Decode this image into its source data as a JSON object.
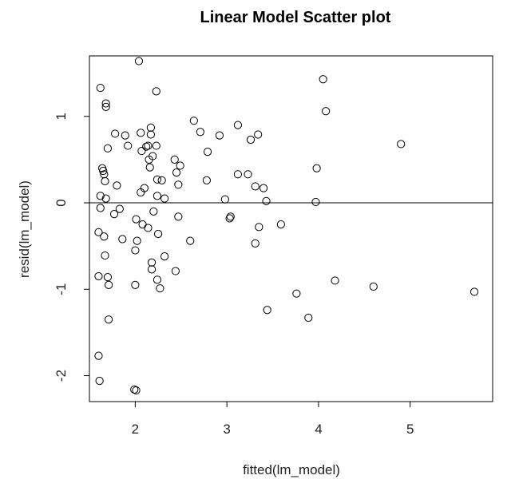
{
  "chart_data": {
    "type": "scatter",
    "title": "Linear Model Scatter plot",
    "xlabel": "fitted(lm_model)",
    "ylabel": "resid(lm_model)",
    "xlim": [
      1.5,
      5.9
    ],
    "ylim": [
      -2.3,
      1.7
    ],
    "xticks": [
      2,
      3,
      4,
      5
    ],
    "yticks": [
      -2,
      -1,
      0,
      1
    ],
    "hline": 0,
    "frame": true,
    "point_style": "open-circle",
    "colors": {
      "ink": "#000000",
      "background": "#ffffff"
    },
    "points": [
      [
        1.62,
        1.33
      ],
      [
        1.68,
        1.15
      ],
      [
        1.68,
        1.11
      ],
      [
        1.7,
        0.63
      ],
      [
        2.04,
        1.64
      ],
      [
        2.23,
        1.29
      ],
      [
        4.05,
        1.43
      ],
      [
        4.08,
        1.06
      ],
      [
        1.64,
        0.4
      ],
      [
        1.65,
        0.37
      ],
      [
        1.66,
        0.33
      ],
      [
        1.67,
        0.25
      ],
      [
        1.62,
        0.08
      ],
      [
        1.68,
        0.05
      ],
      [
        1.62,
        -0.06
      ],
      [
        1.6,
        -0.34
      ],
      [
        1.66,
        -0.39
      ],
      [
        1.67,
        -0.61
      ],
      [
        1.6,
        -0.85
      ],
      [
        1.7,
        -0.86
      ],
      [
        1.71,
        -0.95
      ],
      [
        1.71,
        -1.35
      ],
      [
        1.6,
        -1.77
      ],
      [
        1.61,
        -2.06
      ],
      [
        1.78,
        0.8
      ],
      [
        1.8,
        0.2
      ],
      [
        1.83,
        -0.07
      ],
      [
        1.77,
        -0.13
      ],
      [
        1.86,
        -0.42
      ],
      [
        1.89,
        0.78
      ],
      [
        1.92,
        0.66
      ],
      [
        1.99,
        -2.16
      ],
      [
        2.01,
        -2.17
      ],
      [
        2.0,
        -0.95
      ],
      [
        2.0,
        -0.55
      ],
      [
        2.02,
        -0.44
      ],
      [
        2.01,
        -0.19
      ],
      [
        2.06,
        0.81
      ],
      [
        2.07,
        0.6
      ],
      [
        2.06,
        0.12
      ],
      [
        2.08,
        -0.25
      ],
      [
        2.1,
        0.17
      ],
      [
        2.12,
        0.65
      ],
      [
        2.14,
        0.66
      ],
      [
        2.15,
        0.5
      ],
      [
        2.16,
        0.41
      ],
      [
        2.17,
        0.87
      ],
      [
        2.17,
        0.79
      ],
      [
        2.19,
        0.54
      ],
      [
        2.14,
        -0.29
      ],
      [
        2.2,
        -0.1
      ],
      [
        2.18,
        -0.69
      ],
      [
        2.18,
        -0.77
      ],
      [
        2.23,
        0.66
      ],
      [
        2.24,
        0.27
      ],
      [
        2.24,
        0.08
      ],
      [
        2.24,
        -0.89
      ],
      [
        2.25,
        -0.36
      ],
      [
        2.27,
        -0.99
      ],
      [
        2.29,
        0.26
      ],
      [
        2.32,
        0.05
      ],
      [
        2.32,
        -0.62
      ],
      [
        2.43,
        0.5
      ],
      [
        2.45,
        0.35
      ],
      [
        2.47,
        0.21
      ],
      [
        2.49,
        0.43
      ],
      [
        2.44,
        -0.79
      ],
      [
        2.47,
        -0.16
      ],
      [
        2.6,
        -0.44
      ],
      [
        2.64,
        0.95
      ],
      [
        2.71,
        0.82
      ],
      [
        2.78,
        0.26
      ],
      [
        2.79,
        0.59
      ],
      [
        2.92,
        0.78
      ],
      [
        2.98,
        0.04
      ],
      [
        3.03,
        -0.18
      ],
      [
        3.04,
        -0.16
      ],
      [
        3.12,
        0.9
      ],
      [
        3.12,
        0.33
      ],
      [
        3.23,
        0.33
      ],
      [
        3.26,
        0.73
      ],
      [
        3.31,
        0.19
      ],
      [
        3.34,
        0.79
      ],
      [
        3.31,
        -0.47
      ],
      [
        3.35,
        -0.28
      ],
      [
        3.4,
        0.17
      ],
      [
        3.43,
        0.02
      ],
      [
        3.44,
        -1.24
      ],
      [
        3.59,
        -0.25
      ],
      [
        3.76,
        -1.05
      ],
      [
        3.89,
        -1.33
      ],
      [
        3.97,
        0.01
      ],
      [
        3.98,
        0.4
      ],
      [
        4.18,
        -0.9
      ],
      [
        4.6,
        -0.97
      ],
      [
        4.9,
        0.68
      ],
      [
        5.7,
        -1.03
      ]
    ]
  }
}
